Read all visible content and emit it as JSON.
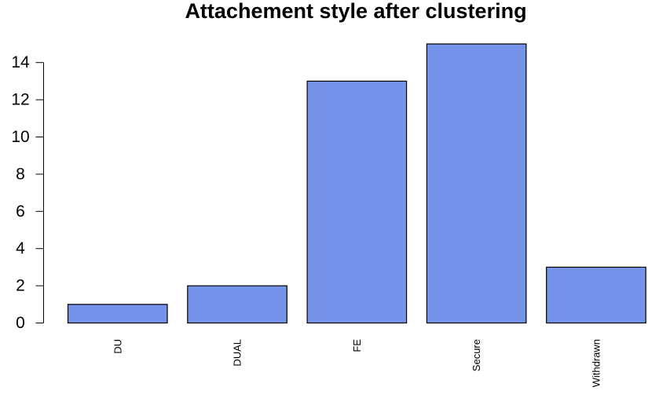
{
  "chart_data": {
    "type": "bar",
    "title": "Attachement style after clustering",
    "categories": [
      "DU",
      "DUAL",
      "FE",
      "Secure",
      "Withdrawn"
    ],
    "values": [
      1,
      2,
      13,
      15,
      3
    ],
    "xlabel": "",
    "ylabel": "",
    "ylim": [
      0,
      15
    ],
    "y_ticks": [
      0,
      2,
      4,
      6,
      8,
      10,
      12,
      14
    ],
    "grid": false,
    "legend": "none",
    "bar_color": "#7593e8",
    "bar_stroke": "#000000"
  }
}
